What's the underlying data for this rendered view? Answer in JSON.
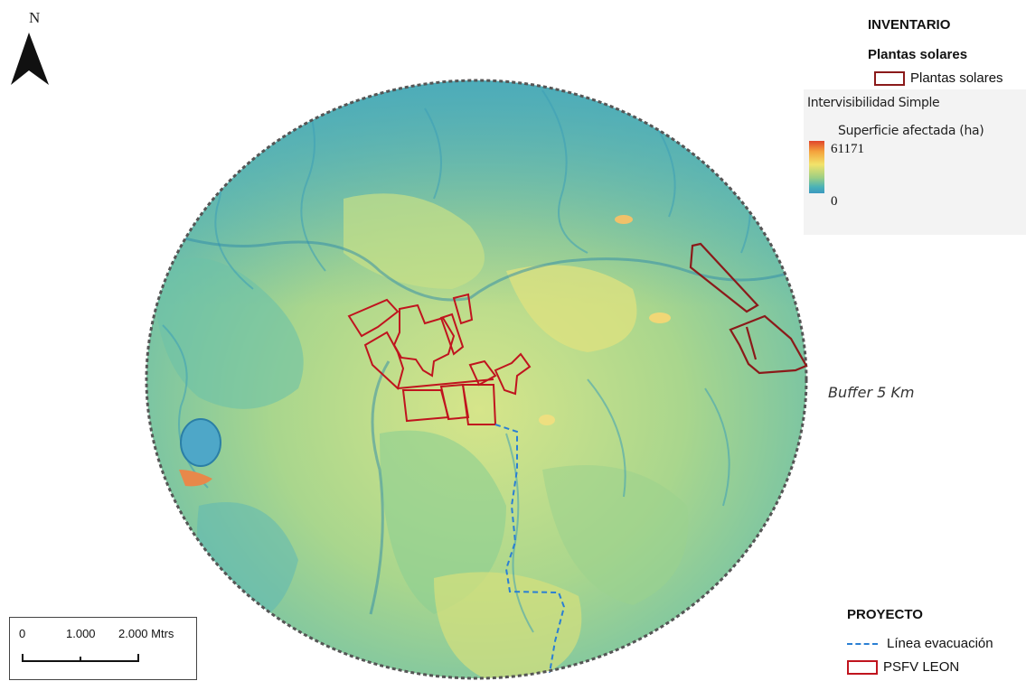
{
  "north_arrow": {
    "letter": "N"
  },
  "legend": {
    "inventory_title": "INVENTARIO",
    "solar_title": "Plantas solares",
    "solar_item": "Plantas solares",
    "solar_color": "#8b1a1a"
  },
  "raster_legend": {
    "title": "Intervisibilidad Simple",
    "subtitle": "Superficie afectada (ha)",
    "max": "61171",
    "min": "0"
  },
  "buffer_label": "Buffer 5 Km",
  "project_legend": {
    "title": "PROYECTO",
    "line_item": "Línea evacuación",
    "line_color": "#2a7fd4",
    "plant_item": "PSFV LEON",
    "plant_color": "#c0141e"
  },
  "scale": {
    "t0": "0",
    "t1": "1.000",
    "t2": "2.000 Mtrs"
  }
}
